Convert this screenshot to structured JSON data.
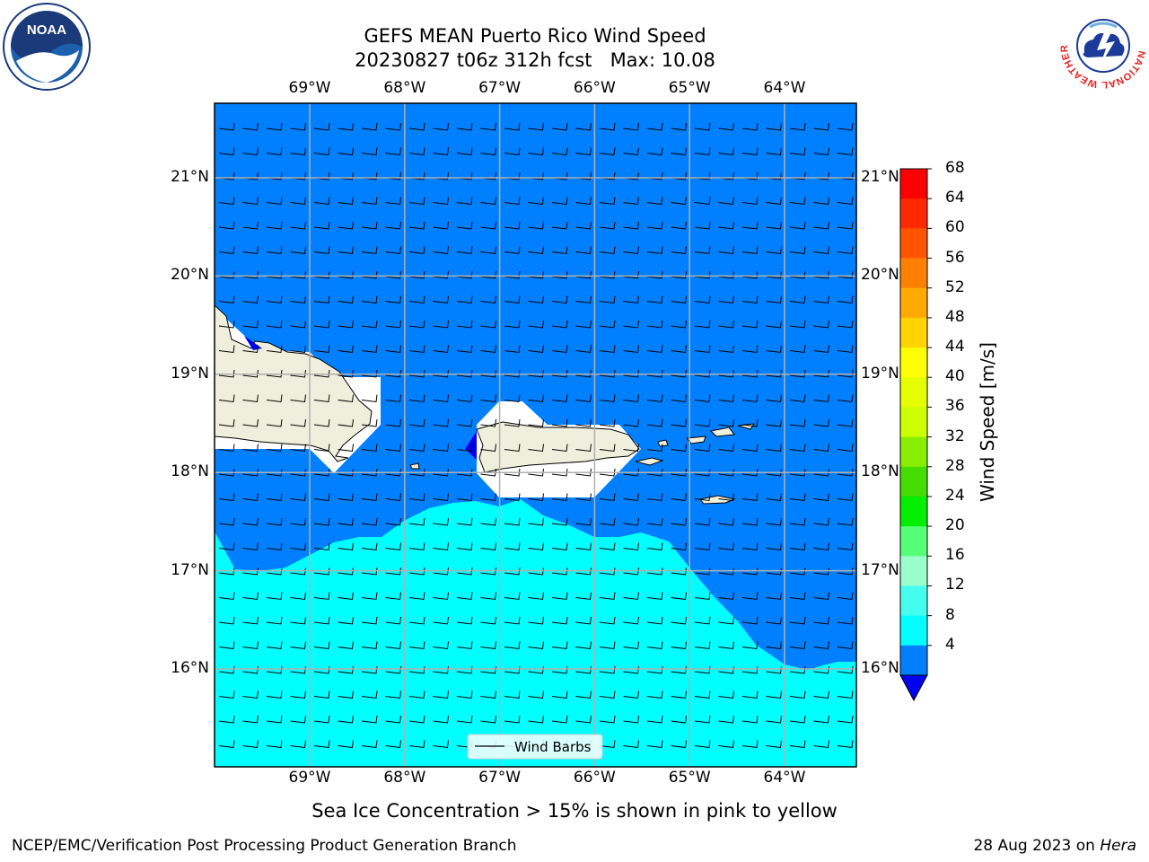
{
  "title": {
    "line1": "GEFS MEAN Puerto Rico Wind Speed",
    "line2": "20230827 t06z 312h fcst   Max: 10.08"
  },
  "axes": {
    "lon_labels": [
      "69°W",
      "68°W",
      "67°W",
      "66°W",
      "65°W",
      "64°W"
    ],
    "lat_labels": [
      "21°N",
      "20°N",
      "19°N",
      "18°N",
      "17°N",
      "16°N"
    ],
    "lon_values": [
      -69,
      -68,
      -67,
      -66,
      -65,
      -64
    ],
    "lat_values": [
      21,
      20,
      19,
      18,
      17,
      16
    ],
    "gridlines": true
  },
  "legend": {
    "label": "Wind Barbs",
    "placement": "bottom-center"
  },
  "colorbar": {
    "label": "Wind Speed [m/s]",
    "ticks": [
      "68",
      "64",
      "60",
      "56",
      "52",
      "48",
      "44",
      "40",
      "36",
      "32",
      "28",
      "24",
      "20",
      "16",
      "12",
      "8",
      "4"
    ],
    "colors": [
      "#fe0000",
      "#ff2a00",
      "#ff5500",
      "#ff8000",
      "#ffaa00",
      "#ffd400",
      "#ffff00",
      "#e6ff00",
      "#ccff00",
      "#88ee00",
      "#44dd00",
      "#00ee00",
      "#55ff77",
      "#99ffcc",
      "#44ffee",
      "#00ffff",
      "#0080ff"
    ],
    "extend_color": "#0000ee"
  },
  "map_colors": {
    "ocean_4_8": "#0080ff",
    "ocean_8_12": "#00ffff",
    "land": "#efefdd",
    "below_4": "#0000ee",
    "masked": "#ffffff"
  },
  "logos": {
    "left": "NOAA",
    "right": "NATIONAL WEATHER SERVICE"
  },
  "note": "Sea Ice Concentration > 15% is shown in pink to yellow",
  "footer": {
    "left": "NCEP/EMC/Verification Post Processing Product Generation Branch",
    "right_date": "28 Aug 2023 on",
    "right_machine": "Hera"
  }
}
